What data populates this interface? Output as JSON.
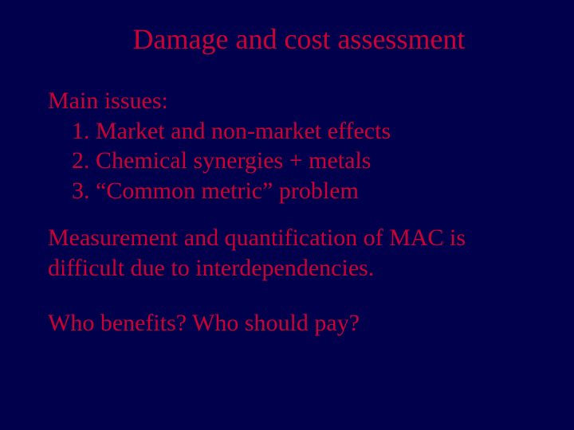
{
  "colors": {
    "background": "#00004d",
    "text": "#cc0033"
  },
  "typography": {
    "family": "Georgia, 'Times New Roman', Times, serif",
    "title_fontsize": 36,
    "body_fontsize": 30
  },
  "title": "Damage and cost assessment",
  "issues": {
    "heading": "Main issues:",
    "items": [
      "1. Market and non-market effects",
      "2. Chemical synergies + metals",
      "3. “Common metric” problem"
    ]
  },
  "paragraphs": [
    "Measurement and quantification of MAC is difficult due to interdependencies.",
    "Who benefits?  Who should pay?"
  ]
}
